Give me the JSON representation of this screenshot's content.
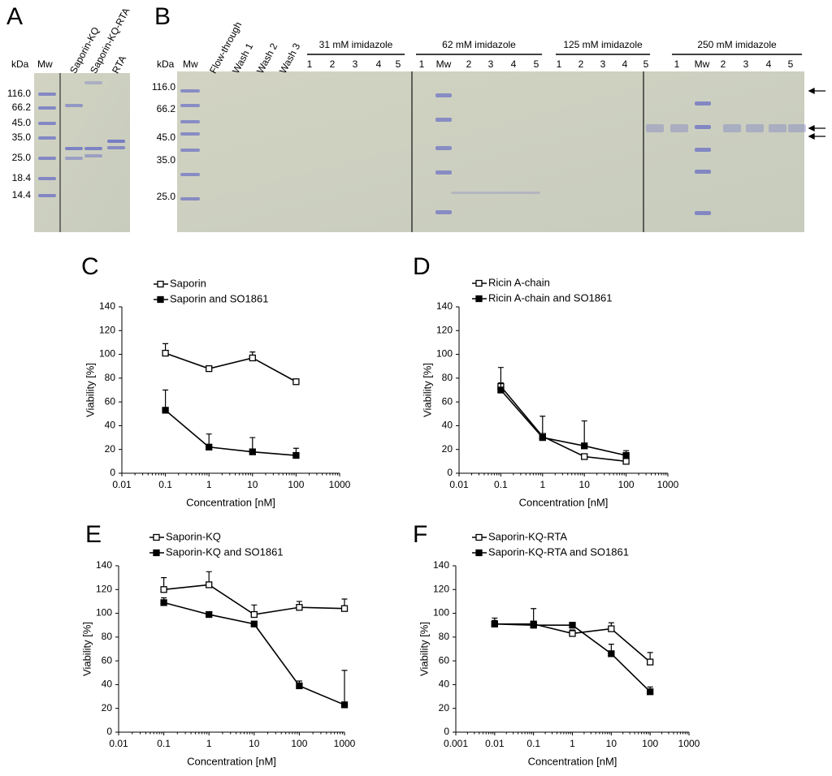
{
  "gel_a": {
    "panel": "A",
    "kda": "kDa",
    "mw": "Mw",
    "lanes": [
      "Saporin-KQ",
      "Saporin-KQ-RTA",
      "RTA"
    ],
    "markers": [
      "116.0",
      "66.2",
      "45.0",
      "35.0",
      "25.0",
      "18.4",
      "14.4"
    ]
  },
  "gel_b": {
    "panel": "B",
    "kda": "kDa",
    "mw": "Mw",
    "lanes": [
      "Flow-through",
      "Wash 1",
      "Wash 2",
      "Wash 3"
    ],
    "groups": [
      {
        "label": "31 mM imidazole",
        "lanes": [
          "1",
          "2",
          "3",
          "4",
          "5"
        ]
      },
      {
        "label": "62 mM imidazole",
        "lanes": [
          "1",
          "Mw",
          "2",
          "3",
          "4",
          "5"
        ]
      },
      {
        "label": "125 mM imidazole",
        "lanes": [
          "1",
          "2",
          "3",
          "4",
          "5"
        ]
      },
      {
        "label": "250 mM imidazole",
        "lanes": [
          "1",
          "Mw",
          "2",
          "3",
          "4",
          "5"
        ]
      }
    ],
    "markers": [
      "116.0",
      "66.2",
      "45.0",
      "35.0",
      "25.0"
    ]
  },
  "chart_data": [
    {
      "type": "line",
      "panel": "C",
      "xlabel": "Concentration [nM]",
      "ylabel": "Viability [%]",
      "log_x": true,
      "xlim": [
        0.01,
        1000
      ],
      "xticks": [
        0.01,
        0.1,
        1,
        10,
        100,
        1000
      ],
      "ylim": [
        0,
        140
      ],
      "yticks": [
        0,
        20,
        40,
        60,
        80,
        100,
        120,
        140
      ],
      "x": [
        0.1,
        1,
        10,
        100
      ],
      "series": [
        {
          "name": "Saporin",
          "marker": "open",
          "color": "#000000",
          "values": [
            101,
            88,
            97,
            77
          ],
          "errors": [
            8,
            2,
            5,
            2
          ]
        },
        {
          "name": "Saporin and SO1861",
          "marker": "filled",
          "color": "#000000",
          "values": [
            53,
            22,
            18,
            15
          ],
          "errors": [
            17,
            11,
            12,
            6
          ]
        }
      ]
    },
    {
      "type": "line",
      "panel": "D",
      "xlabel": "Concentration [nM]",
      "ylabel": "Viability [%]",
      "log_x": true,
      "xlim": [
        0.01,
        1000
      ],
      "xticks": [
        0.01,
        0.1,
        1,
        10,
        100,
        1000
      ],
      "ylim": [
        0,
        140
      ],
      "yticks": [
        0,
        20,
        40,
        60,
        80,
        100,
        120,
        140
      ],
      "x": [
        0.1,
        1,
        10,
        100
      ],
      "series": [
        {
          "name": "Ricin A-chain",
          "marker": "open",
          "color": "#000000",
          "values": [
            73,
            31,
            14,
            10
          ],
          "errors": [
            3,
            2,
            2,
            2
          ]
        },
        {
          "name": "Ricin A-chain and SO1861",
          "marker": "filled",
          "color": "#000000",
          "values": [
            70,
            30,
            23,
            15
          ],
          "errors": [
            19,
            18,
            21,
            4
          ]
        }
      ]
    },
    {
      "type": "line",
      "panel": "E",
      "xlabel": "Concentration [nM]",
      "ylabel": "Viability [%]",
      "log_x": true,
      "xlim": [
        0.01,
        1000
      ],
      "xticks": [
        0.01,
        0.1,
        1,
        10,
        100,
        1000
      ],
      "ylim": [
        0,
        140
      ],
      "yticks": [
        0,
        20,
        40,
        60,
        80,
        100,
        120,
        140
      ],
      "x": [
        0.1,
        1,
        10,
        100,
        1000
      ],
      "series": [
        {
          "name": "Saporin-KQ",
          "marker": "open",
          "color": "#000000",
          "values": [
            120,
            124,
            99,
            105,
            104
          ],
          "errors": [
            10,
            11,
            8,
            5,
            8
          ]
        },
        {
          "name": "Saporin-KQ and SO1861",
          "marker": "filled",
          "color": "#000000",
          "values": [
            109,
            99,
            91,
            39,
            23
          ],
          "errors": [
            4,
            2,
            2,
            4,
            29
          ]
        }
      ]
    },
    {
      "type": "line",
      "panel": "F",
      "xlabel": "Concentration [nM]",
      "ylabel": "Viability [%]",
      "log_x": true,
      "xlim": [
        0.001,
        1000
      ],
      "xticks": [
        0.001,
        0.01,
        0.1,
        1,
        10,
        100,
        1000
      ],
      "ylim": [
        0,
        140
      ],
      "yticks": [
        0,
        20,
        40,
        60,
        80,
        100,
        120,
        140
      ],
      "x": [
        0.01,
        0.1,
        1,
        10,
        100
      ],
      "series": [
        {
          "name": "Saporin-KQ-RTA",
          "marker": "open",
          "color": "#000000",
          "values": [
            91,
            91,
            83,
            87,
            59
          ],
          "errors": [
            5,
            13,
            3,
            5,
            8
          ]
        },
        {
          "name": "Saporin-KQ-RTA and SO1861",
          "marker": "filled",
          "color": "#000000",
          "values": [
            91,
            90,
            90,
            66,
            34
          ],
          "errors": [
            3,
            3,
            2,
            8,
            4
          ]
        }
      ]
    }
  ]
}
